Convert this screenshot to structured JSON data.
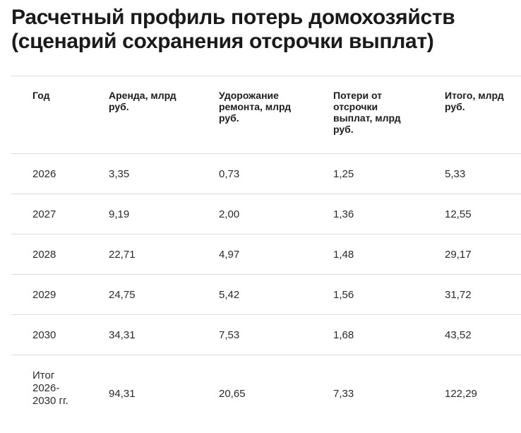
{
  "title": "Расчетный профиль потерь домохозяйств (сценарий сохранения отсрочки выплат)",
  "table": {
    "headers": [
      "Год",
      "Аренда, млрд руб.",
      "Удорожание ремонта, млрд руб.",
      "Потери от отсрочки выплат, млрд руб.",
      "Итого, млрд руб."
    ],
    "rows": [
      [
        "2026",
        "3,35",
        "0,73",
        "1,25",
        "5,33"
      ],
      [
        "2027",
        "9,19",
        "2,00",
        "1,36",
        "12,55"
      ],
      [
        "2028",
        "22,71",
        "4,97",
        "1,48",
        "29,17"
      ],
      [
        "2029",
        "24,75",
        "5,42",
        "1,56",
        "31,72"
      ],
      [
        "2030",
        "34,31",
        "7,53",
        "1,68",
        "43,52"
      ],
      [
        "Итог 2026-2030 гг.",
        "94,31",
        "20,65",
        "7,33",
        "122,29"
      ]
    ]
  }
}
